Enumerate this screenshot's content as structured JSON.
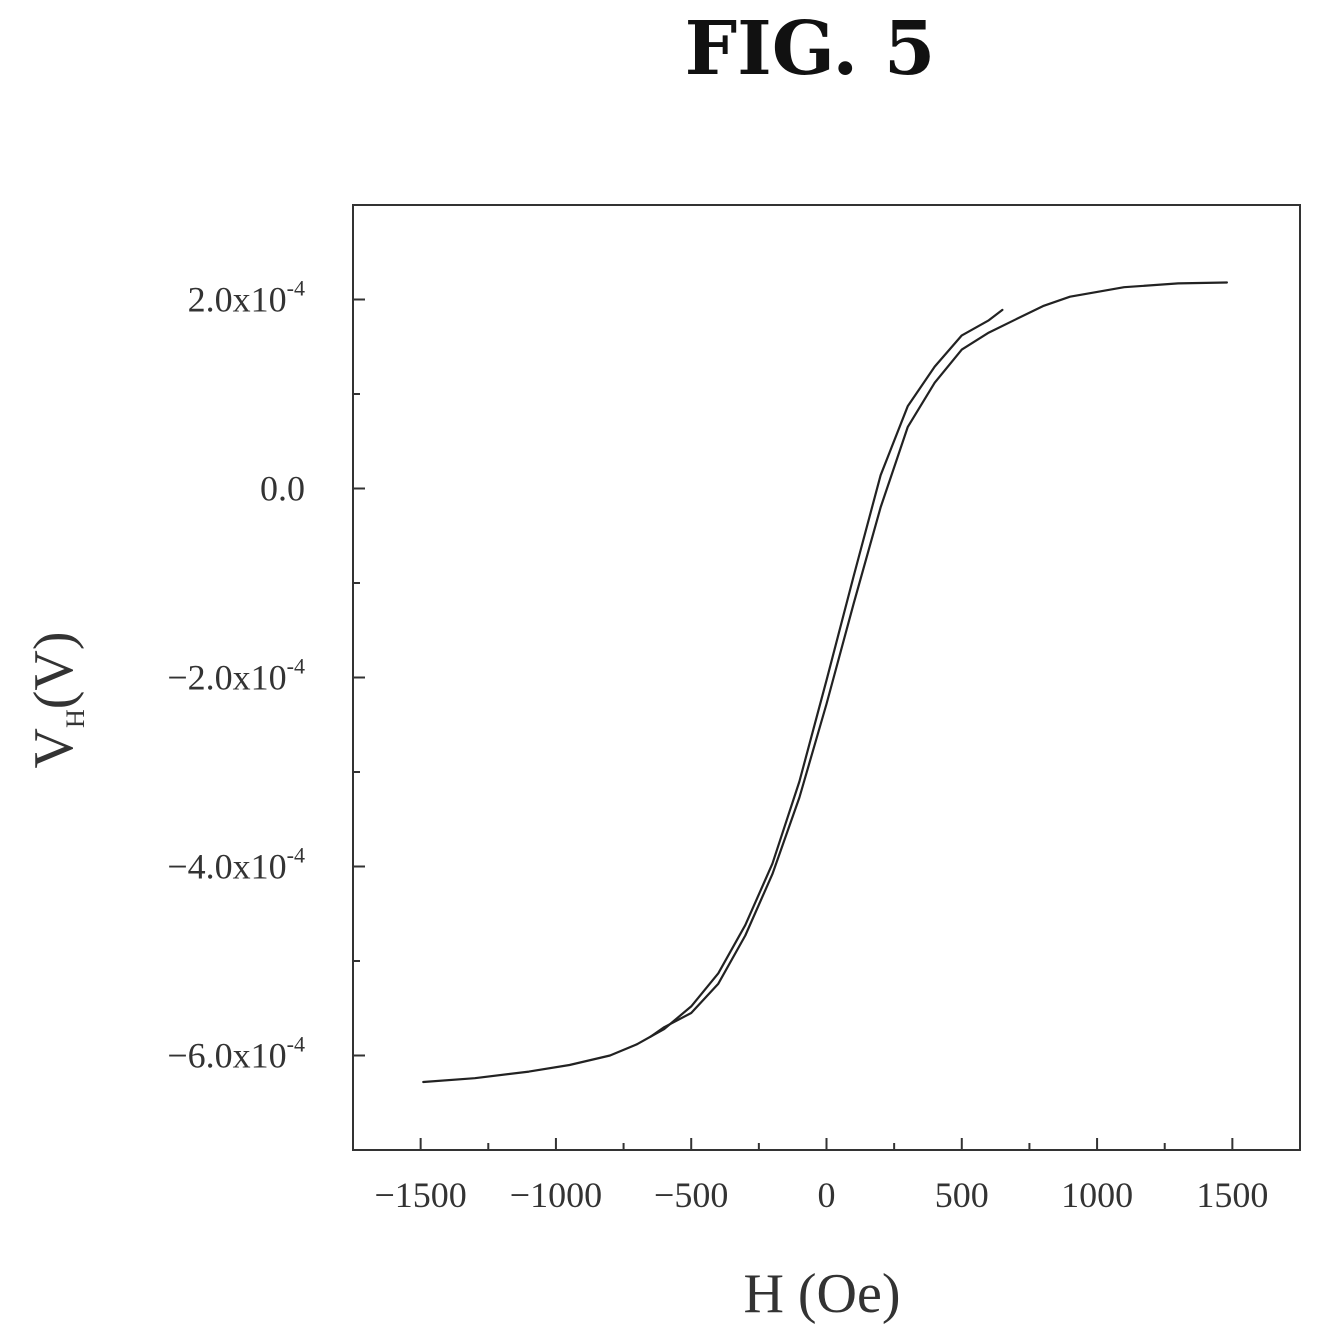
{
  "figure": {
    "title": "FIG. 5"
  },
  "chart_data": {
    "type": "line",
    "title": "FIG. 5",
    "xlabel": "H (Oe)",
    "ylabel": {
      "main": "V",
      "subscript": "H",
      "unit": "(V)"
    },
    "xlim": [
      -1750,
      1750
    ],
    "ylim": [
      -0.0007,
      0.0003
    ],
    "x_ticks": [
      -1500,
      -1000,
      -500,
      0,
      500,
      1000,
      1500
    ],
    "x_tick_labels": [
      "−1500",
      "−1000",
      "−500",
      "0",
      "500",
      "1000",
      "1500"
    ],
    "y_ticks": [
      {
        "value": 0.0002,
        "mantissa": "2.0x10",
        "exponent": "-4"
      },
      {
        "value": 0,
        "mantissa": "0.0",
        "exponent": ""
      },
      {
        "value": -0.0002,
        "mantissa": "−2.0x10",
        "exponent": "-4"
      },
      {
        "value": -0.0004,
        "mantissa": "−4.0x10",
        "exponent": "-4"
      },
      {
        "value": -0.0006,
        "mantissa": "−6.0x10",
        "exponent": "-4"
      }
    ],
    "grid": false,
    "series": [
      {
        "x": [
          -1490,
          -1300,
          -1100,
          -950,
          -800,
          -700,
          -600,
          -500,
          -400,
          -300,
          -200,
          -100,
          0,
          100,
          200,
          300,
          400,
          500,
          600,
          650
        ],
        "y": [
          -0.000628,
          -0.000624,
          -0.000617,
          -0.00061,
          -0.0006,
          -0.000588,
          -0.000572,
          -0.000548,
          -0.000513,
          -0.000462,
          -0.000397,
          -0.00031,
          -0.000203,
          -9.3e-05,
          1.4e-05,
          8.7e-05,
          0.000129,
          0.000162,
          0.000178,
          0.000189
        ]
      },
      {
        "x": [
          -650,
          -600,
          -500,
          -400,
          -300,
          -200,
          -100,
          0,
          100,
          200,
          300,
          400,
          500,
          600,
          700,
          800,
          900,
          1000,
          1100,
          1300,
          1480
        ],
        "y": [
          -0.00058,
          -0.00057,
          -0.000555,
          -0.000524,
          -0.000473,
          -0.000408,
          -0.000327,
          -0.000228,
          -0.000122,
          -2e-05,
          6.5e-05,
          0.000112,
          0.000147,
          0.000165,
          0.000179,
          0.000193,
          0.000203,
          0.000208,
          0.000213,
          0.000217,
          0.000218
        ]
      }
    ]
  }
}
